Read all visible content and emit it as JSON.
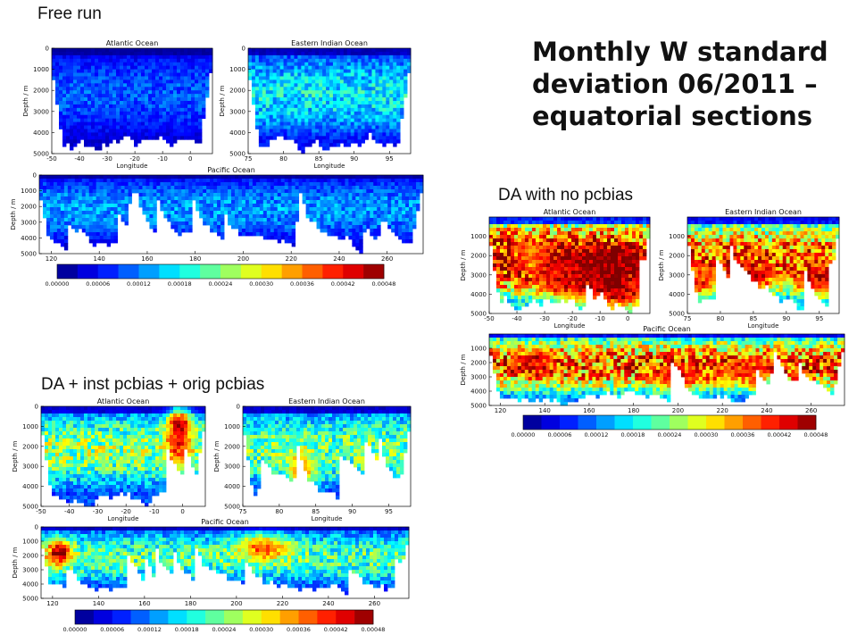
{
  "slide": {
    "title": "Monthly W standard\ndeviation  06/2011 –\nequatorial sections"
  },
  "captions": {
    "free_run": "Free run",
    "da_no_pcbias": "DA with no pcbias",
    "da_inst_orig": "DA + inst pcbias + orig pcbias"
  },
  "colormap": {
    "name": "jet",
    "stops": [
      "#00007f",
      "#0000ff",
      "#007fff",
      "#00ffff",
      "#7fff7f",
      "#ffff00",
      "#ff7f00",
      "#ff0000",
      "#7f0000"
    ]
  },
  "chart_data": [
    {
      "type": "heatmap",
      "group": "Free run",
      "title": "Atlantic Ocean",
      "xlabel": "Longitude",
      "ylabel": "Depth / m",
      "xlim": [
        -50,
        8
      ],
      "ylim": [
        5000,
        0
      ],
      "xticks": [
        "-50",
        "-40",
        "-30",
        "-20",
        "-10",
        "0"
      ],
      "yticks": [
        "0",
        "1000",
        "2000",
        "3000",
        "4000",
        "5000"
      ],
      "mean_level": 7e-05,
      "hotspots": []
    },
    {
      "type": "heatmap",
      "group": "Free run",
      "title": "Eastern Indian Ocean",
      "xlabel": "Longitude",
      "ylabel": "Depth / m",
      "xlim": [
        75,
        98
      ],
      "ylim": [
        5000,
        0
      ],
      "xticks": [
        "75",
        "80",
        "85",
        "90",
        "95"
      ],
      "yticks": [
        "0",
        "1000",
        "2000",
        "3000",
        "4000",
        "5000"
      ],
      "mean_level": 0.00012,
      "hotspots": []
    },
    {
      "type": "heatmap",
      "group": "Free run",
      "title": "Pacific Ocean",
      "xlabel": "",
      "ylabel": "Depth / m",
      "xlim": [
        115,
        275
      ],
      "ylim": [
        5000,
        0
      ],
      "xticks": [
        "120",
        "140",
        "160",
        "180",
        "200",
        "220",
        "240",
        "260"
      ],
      "yticks": [
        "0",
        "1000",
        "2000",
        "3000",
        "4000",
        "5000"
      ],
      "mean_level": 9e-05,
      "hotspots": []
    },
    {
      "type": "colorbar",
      "group": "Free run",
      "ticks": [
        "0.00000",
        "0.00006",
        "0.00012",
        "0.00018",
        "0.00024",
        "0.00030",
        "0.00036",
        "0.00042",
        "0.00048"
      ],
      "range": [
        0,
        0.00048
      ]
    },
    {
      "type": "heatmap",
      "group": "DA with no pcbias",
      "title": "Atlantic Ocean",
      "xlabel": "Longitude",
      "ylabel": "Depth / m",
      "xlim": [
        -50,
        8
      ],
      "ylim": [
        5000,
        0
      ],
      "xticks": [
        "-50",
        "-40",
        "-30",
        "-20",
        "-10",
        "0"
      ],
      "yticks": [
        "1000",
        "2000",
        "3000",
        "4000",
        "5000"
      ],
      "mean_level": 0.00032,
      "hotspots": [
        {
          "lon": -10,
          "depth": 2500,
          "level": 0.00048,
          "spread": 0.22
        },
        {
          "lon": -5,
          "depth": 3800,
          "level": 0.00048,
          "spread": 0.2
        },
        {
          "lon": -22,
          "depth": 3000,
          "level": 0.00044,
          "spread": 0.12
        },
        {
          "lon": -35,
          "depth": 2000,
          "level": 0.00036,
          "spread": 0.1
        }
      ]
    },
    {
      "type": "heatmap",
      "group": "DA with no pcbias",
      "title": "Eastern Indian Ocean",
      "xlabel": "Longitude",
      "ylabel": "Depth / m",
      "xlim": [
        75,
        98
      ],
      "ylim": [
        5000,
        0
      ],
      "xticks": [
        "75",
        "80",
        "85",
        "90",
        "95"
      ],
      "yticks": [
        "1000",
        "2000",
        "3000",
        "4000",
        "5000"
      ],
      "mean_level": 0.00026,
      "hotspots": [
        {
          "lon": 84,
          "depth": 3000,
          "level": 0.00044,
          "spread": 0.12
        },
        {
          "lon": 95,
          "depth": 3200,
          "level": 0.00044,
          "spread": 0.1
        },
        {
          "lon": 77,
          "depth": 3300,
          "level": 0.0004,
          "spread": 0.07
        }
      ]
    },
    {
      "type": "heatmap",
      "group": "DA with no pcbias",
      "title": "Pacific Ocean",
      "xlabel": "",
      "ylabel": "Depth / m",
      "xlim": [
        115,
        275
      ],
      "ylim": [
        5000,
        0
      ],
      "xticks": [
        "120",
        "140",
        "160",
        "180",
        "200",
        "220",
        "240",
        "260"
      ],
      "yticks": [
        "1000",
        "2000",
        "3000",
        "4000",
        "5000"
      ],
      "mean_level": 0.00026,
      "hotspots": [
        {
          "lon": 135,
          "depth": 2000,
          "level": 0.00044,
          "spread": 0.04
        },
        {
          "lon": 200,
          "depth": 3000,
          "level": 0.00042,
          "spread": 0.05
        },
        {
          "lon": 230,
          "depth": 2500,
          "level": 0.0004,
          "spread": 0.05
        }
      ]
    },
    {
      "type": "colorbar",
      "group": "DA with no pcbias",
      "ticks": [
        "0.00000",
        "0.00006",
        "0.00012",
        "0.00018",
        "0.00024",
        "0.00030",
        "0.00036",
        "0.00042",
        "0.00048"
      ],
      "range": [
        0,
        0.00048
      ]
    },
    {
      "type": "heatmap",
      "group": "DA + inst pcbias + orig pcbias",
      "title": "Atlantic Ocean",
      "xlabel": "Longitude",
      "ylabel": "Depth / m",
      "xlim": [
        -50,
        8
      ],
      "ylim": [
        5000,
        0
      ],
      "xticks": [
        "-50",
        "-40",
        "-30",
        "-20",
        "-10",
        "0"
      ],
      "yticks": [
        "0",
        "1000",
        "2000",
        "3000",
        "4000",
        "5000"
      ],
      "mean_level": 0.00017,
      "hotspots": [
        {
          "lon": -1,
          "depth": 1000,
          "level": 0.00048,
          "spread": 0.05
        },
        {
          "lon": -2,
          "depth": 2000,
          "level": 0.00042,
          "spread": 0.05
        }
      ]
    },
    {
      "type": "heatmap",
      "group": "DA + inst pcbias + orig pcbias",
      "title": "Eastern Indian Ocean",
      "xlabel": "Longitude",
      "ylabel": "Depth / m",
      "xlim": [
        75,
        98
      ],
      "ylim": [
        5000,
        0
      ],
      "xticks": [
        "75",
        "80",
        "85",
        "90",
        "95"
      ],
      "yticks": [
        "0",
        "1000",
        "2000",
        "3000",
        "4000",
        "5000"
      ],
      "mean_level": 0.00016,
      "hotspots": [
        {
          "lon": 83,
          "depth": 3200,
          "level": 0.00034,
          "spread": 0.06
        }
      ]
    },
    {
      "type": "heatmap",
      "group": "DA + inst pcbias + orig pcbias",
      "title": "Pacific Ocean",
      "xlabel": "",
      "ylabel": "Depth / m",
      "xlim": [
        115,
        275
      ],
      "ylim": [
        5000,
        0
      ],
      "xticks": [
        "120",
        "140",
        "160",
        "180",
        "200",
        "220",
        "240",
        "260"
      ],
      "yticks": [
        "0",
        "1000",
        "2000",
        "3000",
        "4000",
        "5000"
      ],
      "mean_level": 0.00015,
      "hotspots": [
        {
          "lon": 123,
          "depth": 1800,
          "level": 0.00048,
          "spread": 0.025
        },
        {
          "lon": 212,
          "depth": 1500,
          "level": 0.00038,
          "spread": 0.05
        }
      ]
    },
    {
      "type": "colorbar",
      "group": "DA + inst pcbias + orig pcbias",
      "ticks": [
        "0.00000",
        "0.00006",
        "0.00012",
        "0.00018",
        "0.00024",
        "0.00030",
        "0.00036",
        "0.00042",
        "0.00048"
      ],
      "range": [
        0,
        0.00048
      ]
    }
  ]
}
